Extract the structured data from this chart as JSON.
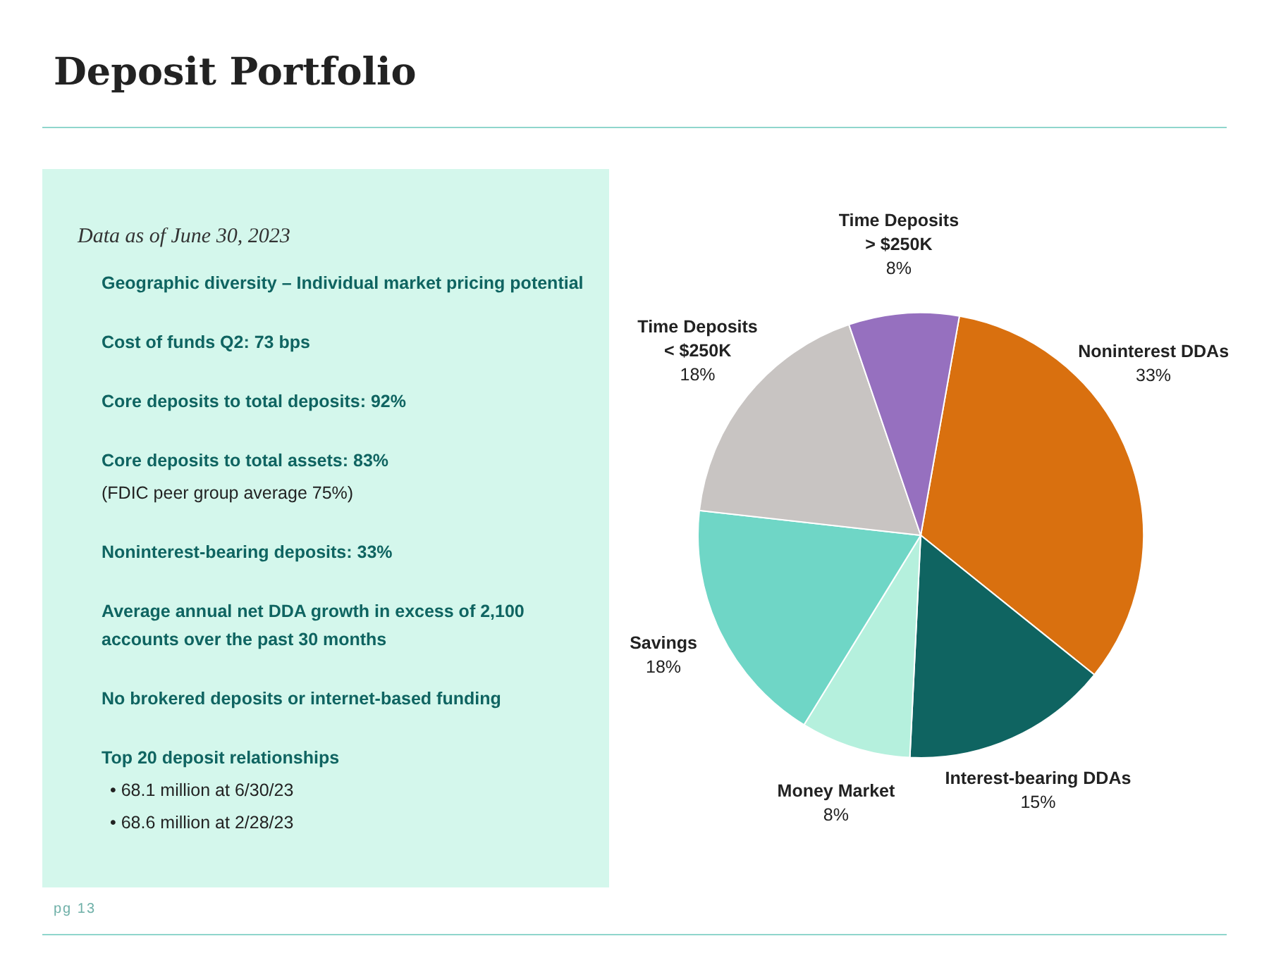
{
  "chart_data": [
    {
      "type": "other",
      "title": "Deposit Portfolio",
      "subtitle": "Data as of June 30, 2023",
      "annotations": [
        "Geographic diversity – Individual market pricing potential",
        "Cost of funds Q2: 73 bps",
        "Core deposits to total deposits: 92%",
        "Core deposits to total assets: 83%",
        "(FDIC peer group average 75%)",
        "Noninterest-bearing deposits:  33%",
        "Average annual net DDA growth in excess of 2,100 accounts over the past 30 months",
        "No brokered deposits or internet-based funding",
        "Top 20 deposit relationships",
        "• 68.1 million at 6/30/23",
        "• 68.6 million at 2/28/23",
        "pg 13"
      ]
    },
    {
      "type": "pie",
      "categories": [
        "Noninterest DDAs",
        "Interest-bearing DDAs",
        "Money Market",
        "Savings",
        "Time Deposits\n< $250K",
        "Time Deposits\n> $250K"
      ],
      "values": [
        33,
        15,
        8,
        18,
        18,
        8
      ],
      "value_labels": [
        "33%",
        "15%",
        "8%",
        "18%",
        "18%",
        "8%"
      ],
      "colors": [
        "#d9700f",
        "#0f6461",
        "#b5f0dd",
        "#6fd6c6",
        "#c8c4c2",
        "#9670bf"
      ],
      "legend": false
    }
  ]
}
